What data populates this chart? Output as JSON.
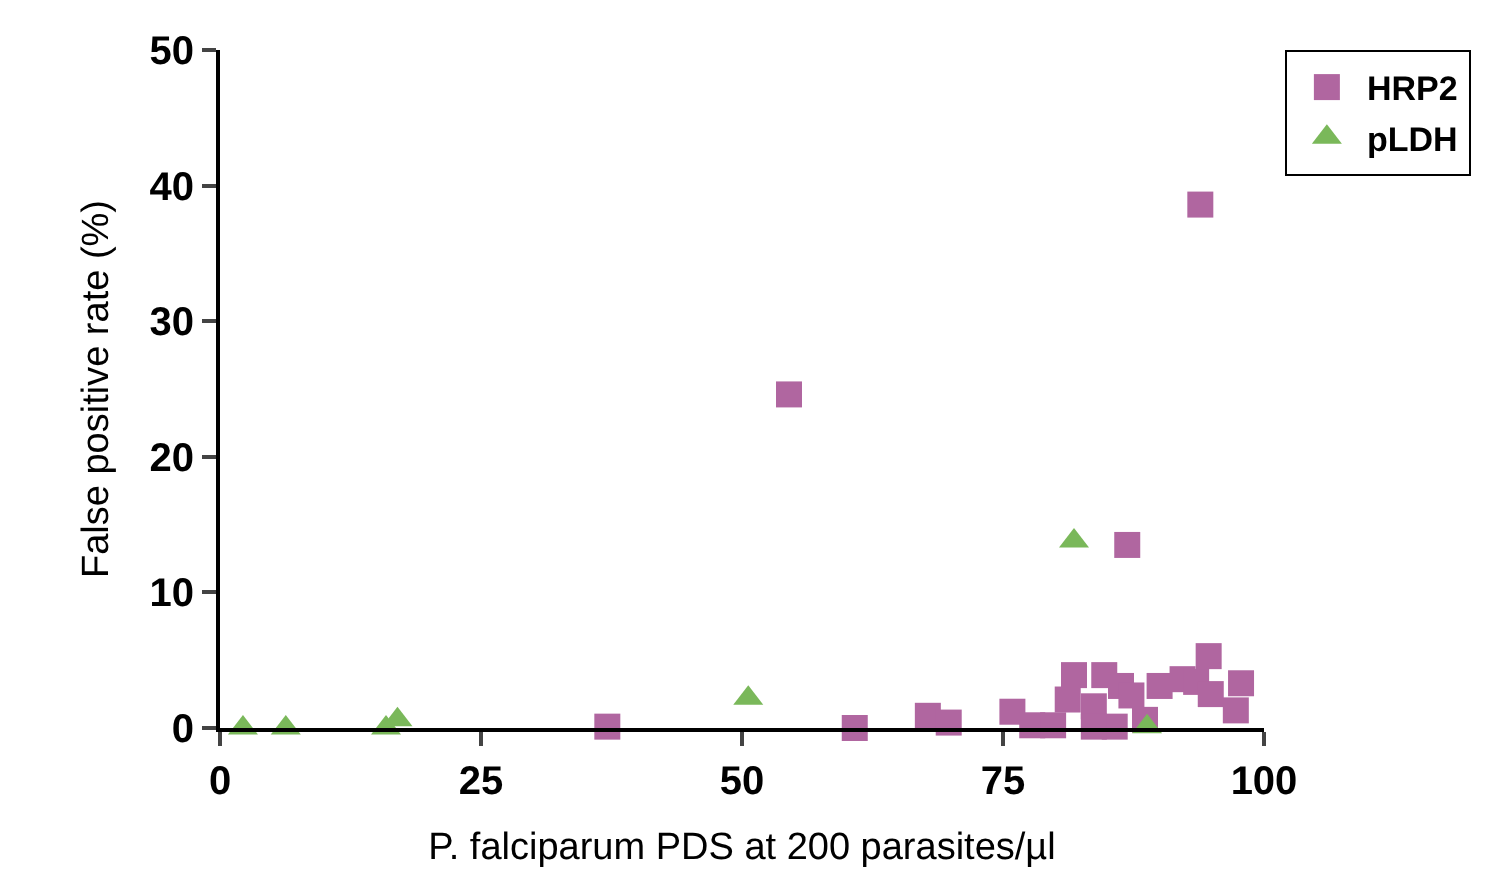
{
  "chart_data": {
    "type": "scatter",
    "xlabel": "P. falciparum PDS at 200 parasites/µl",
    "ylabel": "False positive rate (%)",
    "xlim": [
      0,
      100
    ],
    "ylim": [
      0,
      50
    ],
    "xticks": [
      0,
      25,
      50,
      75,
      100
    ],
    "yticks": [
      0,
      10,
      20,
      30,
      40,
      50
    ],
    "legend": "top right",
    "series": [
      {
        "name": "HRP2",
        "color": "#b066a0",
        "marker": "square",
        "x": [
          37.1,
          54.5,
          93.9,
          86.9,
          60.8,
          67.8,
          69.8,
          75.9,
          77.8,
          79.8,
          81.2,
          81.8,
          83.7,
          84.7,
          85.7,
          86.3,
          87.3,
          88.6,
          90,
          92.2,
          93.5,
          94.7,
          97.3,
          97.8,
          94.9,
          83.7
        ],
        "values": [
          0.1,
          24.6,
          38.6,
          13.5,
          0,
          0.9,
          0.4,
          1.2,
          0.2,
          0.2,
          2.1,
          3.9,
          1.6,
          3.9,
          0.1,
          3.1,
          2.4,
          0.6,
          3.1,
          3.6,
          3.4,
          5.3,
          1.3,
          3.3,
          2.5,
          0.1
        ]
      },
      {
        "name": "pLDH",
        "color": "#7ab85a",
        "marker": "triangle",
        "x": [
          2.2,
          6.3,
          15.9,
          17,
          50.6,
          81.8,
          88.8
        ],
        "values": [
          0,
          0,
          0,
          0.6,
          2.2,
          13.8,
          0.1
        ]
      }
    ]
  }
}
